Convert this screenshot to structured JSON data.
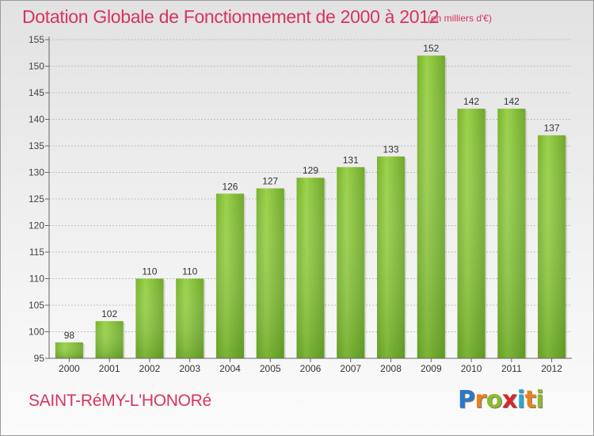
{
  "header": {
    "title": "Dotation Globale de Fonctionnement de 2000 à 2012",
    "unit": "(en milliers d'€)"
  },
  "footer": {
    "commune": "SAINT-RéMY-L'HONORé",
    "logo_letters": [
      "P",
      "r",
      "o",
      "x",
      "i",
      "t",
      "i"
    ],
    "logo_colors": [
      "#2a79c9",
      "#e8821e",
      "#8dbb2b",
      "#d9262b",
      "#2aa6d6",
      "#e8821e",
      "#8dbb2b"
    ]
  },
  "chart_data": {
    "type": "bar",
    "title": "Dotation Globale de Fonctionnement de 2000 à 2012",
    "xlabel": "",
    "ylabel": "",
    "categories": [
      "2000",
      "2001",
      "2002",
      "2003",
      "2004",
      "2005",
      "2006",
      "2007",
      "2008",
      "2009",
      "2010",
      "2011",
      "2012"
    ],
    "values": [
      98,
      102,
      110,
      110,
      126,
      127,
      129,
      131,
      133,
      152,
      142,
      142,
      137
    ],
    "data_labels": [
      "98",
      "102",
      "110",
      "110",
      "126",
      "127",
      "129",
      "131",
      "133",
      "152",
      "142",
      "142",
      "137"
    ],
    "ylim": [
      95,
      155
    ],
    "yticks": [
      95,
      100,
      105,
      110,
      115,
      120,
      125,
      130,
      135,
      140,
      145,
      150,
      155
    ],
    "ytick_labels": [
      "95",
      "100",
      "105",
      "110",
      "115",
      "120",
      "125",
      "130",
      "135",
      "140",
      "145",
      "150",
      "155"
    ],
    "grid": true,
    "bar_color": "#8cc63f",
    "bar_color_dark": "#6aa42a"
  }
}
